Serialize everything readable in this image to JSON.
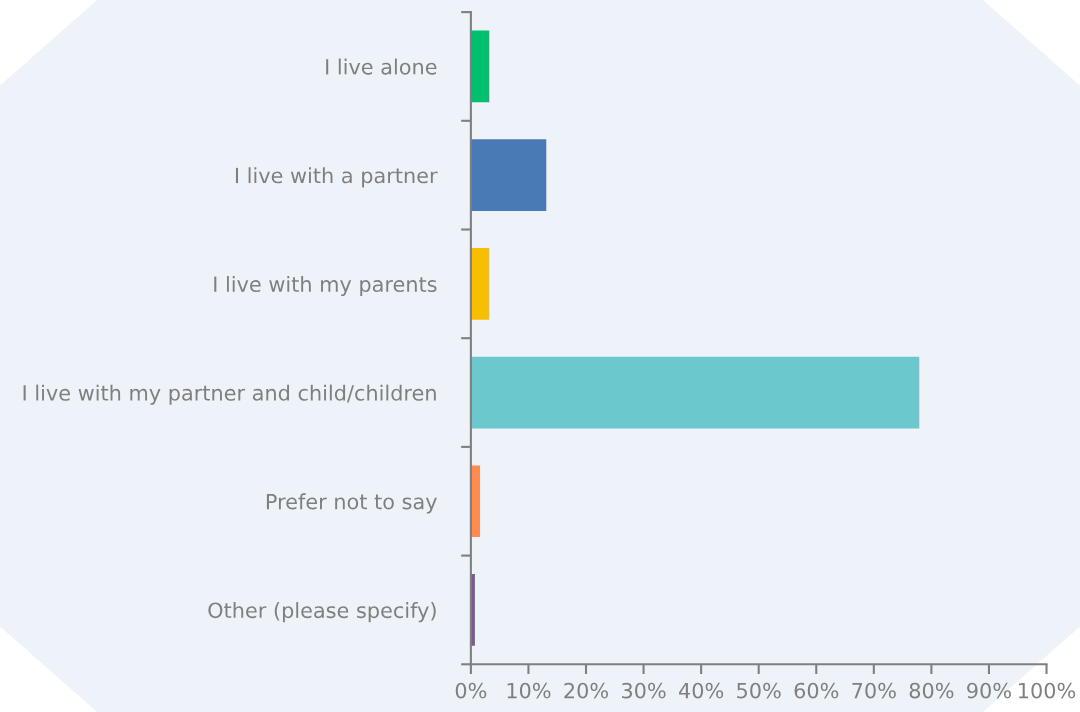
{
  "chart_data": {
    "type": "bar",
    "orientation": "horizontal",
    "categories": [
      "I live alone",
      "I live with a partner",
      "I live with my parents",
      "I live with my partner and child/children",
      "Prefer not to say",
      "Other (please specify)"
    ],
    "values": [
      3.2,
      13.1,
      3.2,
      77.9,
      1.6,
      0.7
    ],
    "colors": [
      "#00bf6f",
      "#4a7ab5",
      "#f9be00",
      "#6bc8cd",
      "#ff8b4f",
      "#7d5a94"
    ],
    "xlim": [
      0,
      100
    ],
    "xticks": [
      {
        "value": 0,
        "label": "0%"
      },
      {
        "value": 10,
        "label": "10%"
      },
      {
        "value": 20,
        "label": "20%"
      },
      {
        "value": 30,
        "label": "30%"
      },
      {
        "value": 40,
        "label": "40%"
      },
      {
        "value": 50,
        "label": "50%"
      },
      {
        "value": 60,
        "label": "60%"
      },
      {
        "value": 70,
        "label": "70%"
      },
      {
        "value": 80,
        "label": "80%"
      },
      {
        "value": 90,
        "label": "90%"
      },
      {
        "value": 100,
        "label": "100%"
      }
    ],
    "grid": false
  }
}
